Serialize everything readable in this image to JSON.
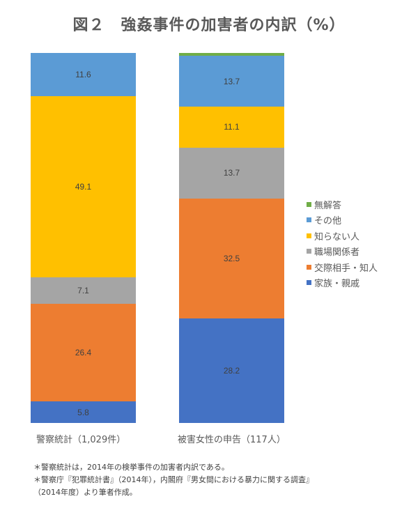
{
  "title": "図２　強姦事件の加害者の内訳（%）",
  "colors": {
    "無解答": "#70ad47",
    "その他": "#5b9bd5",
    "知らない人": "#ffc000",
    "職場関係者": "#a5a5a5",
    "交際相手・知人": "#ed7d31",
    "家族・親戚": "#4472c4"
  },
  "legend": [
    {
      "label": "無解答",
      "color": "#70ad47"
    },
    {
      "label": "その他",
      "color": "#5b9bd5"
    },
    {
      "label": "知らない人",
      "color": "#ffc000"
    },
    {
      "label": "職場関係者",
      "color": "#a5a5a5"
    },
    {
      "label": "交際相手・知人",
      "color": "#ed7d31"
    },
    {
      "label": "家族・親戚",
      "color": "#4472c4"
    }
  ],
  "bars": [
    {
      "label": "警察統計（1,029件）",
      "segments_top_to_bottom": [
        {
          "name": "その他",
          "value": "11.6",
          "pct": 11.6,
          "color": "#5b9bd5"
        },
        {
          "name": "知らない人",
          "value": "49.1",
          "pct": 49.1,
          "color": "#ffc000"
        },
        {
          "name": "職場関係者",
          "value": "7.1",
          "pct": 7.1,
          "color": "#a5a5a5"
        },
        {
          "name": "交際相手・知人",
          "value": "26.4",
          "pct": 26.4,
          "color": "#ed7d31"
        },
        {
          "name": "家族・親戚",
          "value": "5.8",
          "pct": 5.8,
          "color": "#4472c4"
        }
      ]
    },
    {
      "label": "被害女性の申告（117人）",
      "segments_top_to_bottom": [
        {
          "name": "無解答",
          "value": "",
          "pct": 0.8,
          "color": "#70ad47"
        },
        {
          "name": "その他",
          "value": "13.7",
          "pct": 13.7,
          "color": "#5b9bd5"
        },
        {
          "name": "知らない人",
          "value": "11.1",
          "pct": 11.1,
          "color": "#ffc000"
        },
        {
          "name": "職場関係者",
          "value": "13.7",
          "pct": 13.7,
          "color": "#a5a5a5"
        },
        {
          "name": "交際相手・知人",
          "value": "32.5",
          "pct": 32.5,
          "color": "#ed7d31"
        },
        {
          "name": "家族・親戚",
          "value": "28.2",
          "pct": 28.2,
          "color": "#4472c4"
        }
      ]
    }
  ],
  "notes": [
    "＊警察統計は，2014年の検挙事件の加害者内訳である。",
    "＊警察庁『犯罪統計書』（2014年），内閣府『男女間における暴力に関する調査』",
    "（2014年度）より筆者作成。"
  ],
  "chart_data": {
    "type": "bar",
    "stacked": true,
    "percent": true,
    "title": "図２　強姦事件の加害者の内訳（%）",
    "categories": [
      "警察統計（1,029件）",
      "被害女性の申告（117人）"
    ],
    "series": [
      {
        "name": "家族・親戚",
        "color": "#4472c4",
        "values": [
          5.8,
          28.2
        ]
      },
      {
        "name": "交際相手・知人",
        "color": "#ed7d31",
        "values": [
          26.4,
          32.5
        ]
      },
      {
        "name": "職場関係者",
        "color": "#a5a5a5",
        "values": [
          7.1,
          13.7
        ]
      },
      {
        "name": "知らない人",
        "color": "#ffc000",
        "values": [
          49.1,
          11.1
        ]
      },
      {
        "name": "その他",
        "color": "#5b9bd5",
        "values": [
          11.6,
          13.7
        ]
      },
      {
        "name": "無解答",
        "color": "#70ad47",
        "values": [
          0,
          0.8
        ]
      }
    ],
    "xlabel": "",
    "ylabel": "",
    "ylim": [
      0,
      100
    ],
    "grid": false,
    "legend_position": "right"
  }
}
